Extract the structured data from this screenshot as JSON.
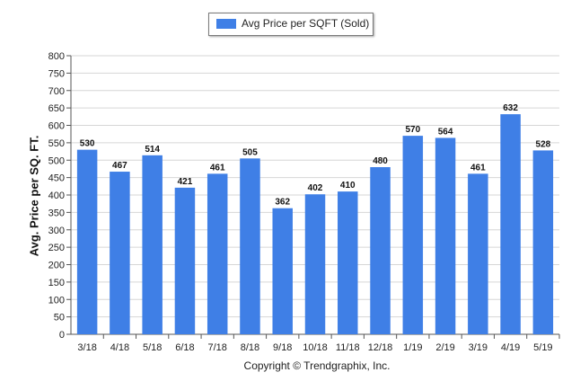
{
  "colors": {
    "bar": "#3f7fe6",
    "grid": "#d6d6d6",
    "axis": "#555555"
  },
  "legend": {
    "label": "Avg Price per SQFT (Sold)"
  },
  "footer": {
    "text": "Copyright © Trendgraphix, Inc."
  },
  "chart_data": {
    "type": "bar",
    "title": "",
    "xlabel": "",
    "ylabel": "Avg. Price per SQ. FT.",
    "ylim": [
      0,
      800
    ],
    "ytick_step": 50,
    "grid": true,
    "legend_position": "top-center",
    "categories": [
      "3/18",
      "4/18",
      "5/18",
      "6/18",
      "7/18",
      "8/18",
      "9/18",
      "10/18",
      "11/18",
      "12/18",
      "1/19",
      "2/19",
      "3/19",
      "4/19",
      "5/19"
    ],
    "series": [
      {
        "name": "Avg Price per SQFT (Sold)",
        "values": [
          530,
          467,
          514,
          421,
          461,
          505,
          362,
          402,
          410,
          480,
          570,
          564,
          461,
          632,
          528
        ]
      }
    ]
  }
}
